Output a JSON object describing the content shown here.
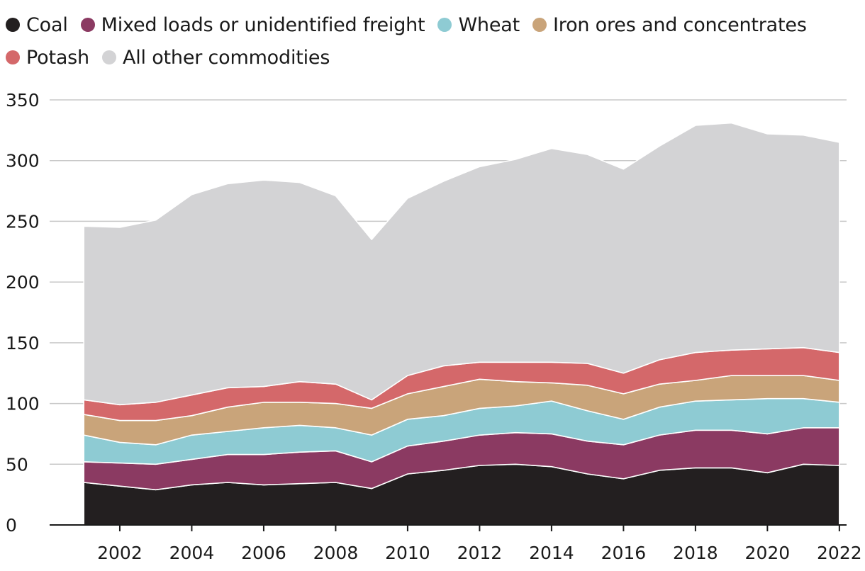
{
  "chart_data": {
    "type": "area",
    "stacked": true,
    "title": "",
    "xlabel": "",
    "ylabel": "",
    "x": [
      2001,
      2002,
      2003,
      2004,
      2005,
      2006,
      2007,
      2008,
      2009,
      2010,
      2011,
      2012,
      2013,
      2014,
      2015,
      2016,
      2017,
      2018,
      2019,
      2020,
      2021,
      2022
    ],
    "ylim": [
      0,
      350
    ],
    "xlim": [
      2000.05,
      2022.2
    ],
    "y_ticks": [
      0,
      50,
      100,
      150,
      200,
      250,
      300,
      350
    ],
    "x_ticks": [
      2002,
      2004,
      2006,
      2008,
      2010,
      2012,
      2014,
      2016,
      2018,
      2020,
      2022
    ],
    "grid": "horizontal",
    "legend_position": "top-left",
    "series": [
      {
        "name": "Coal",
        "color": "#231f20",
        "values": [
          35,
          32,
          29,
          33,
          35,
          33,
          34,
          35,
          30,
          42,
          45,
          49,
          50,
          48,
          42,
          38,
          45,
          47,
          47,
          43,
          50,
          49
        ]
      },
      {
        "name": "Mixed loads or unidentified freight",
        "color": "#8b3a62",
        "values": [
          17,
          19,
          21,
          21,
          23,
          25,
          26,
          26,
          22,
          23,
          24,
          25,
          26,
          27,
          27,
          28,
          29,
          31,
          31,
          32,
          30,
          31
        ]
      },
      {
        "name": "Wheat",
        "color": "#8ecbd3",
        "values": [
          22,
          17,
          16,
          20,
          19,
          22,
          22,
          19,
          22,
          22,
          21,
          22,
          22,
          27,
          25,
          21,
          23,
          24,
          25,
          29,
          24,
          21
        ]
      },
      {
        "name": "Iron ores and concentrates",
        "color": "#c9a47a",
        "values": [
          17,
          18,
          20,
          16,
          20,
          21,
          19,
          20,
          22,
          21,
          24,
          24,
          20,
          15,
          21,
          21,
          19,
          17,
          20,
          19,
          19,
          18
        ]
      },
      {
        "name": "Potash",
        "color": "#d4686a",
        "values": [
          12,
          13,
          15,
          17,
          16,
          13,
          17,
          16,
          7,
          15,
          17,
          14,
          16,
          17,
          18,
          17,
          20,
          23,
          21,
          22,
          23,
          23
        ]
      },
      {
        "name": "All other commodities",
        "color": "#d3d3d5",
        "values": [
          143,
          146,
          150,
          165,
          168,
          170,
          164,
          155,
          132,
          146,
          152,
          161,
          167,
          176,
          172,
          168,
          176,
          187,
          187,
          177,
          175,
          173
        ]
      }
    ]
  }
}
